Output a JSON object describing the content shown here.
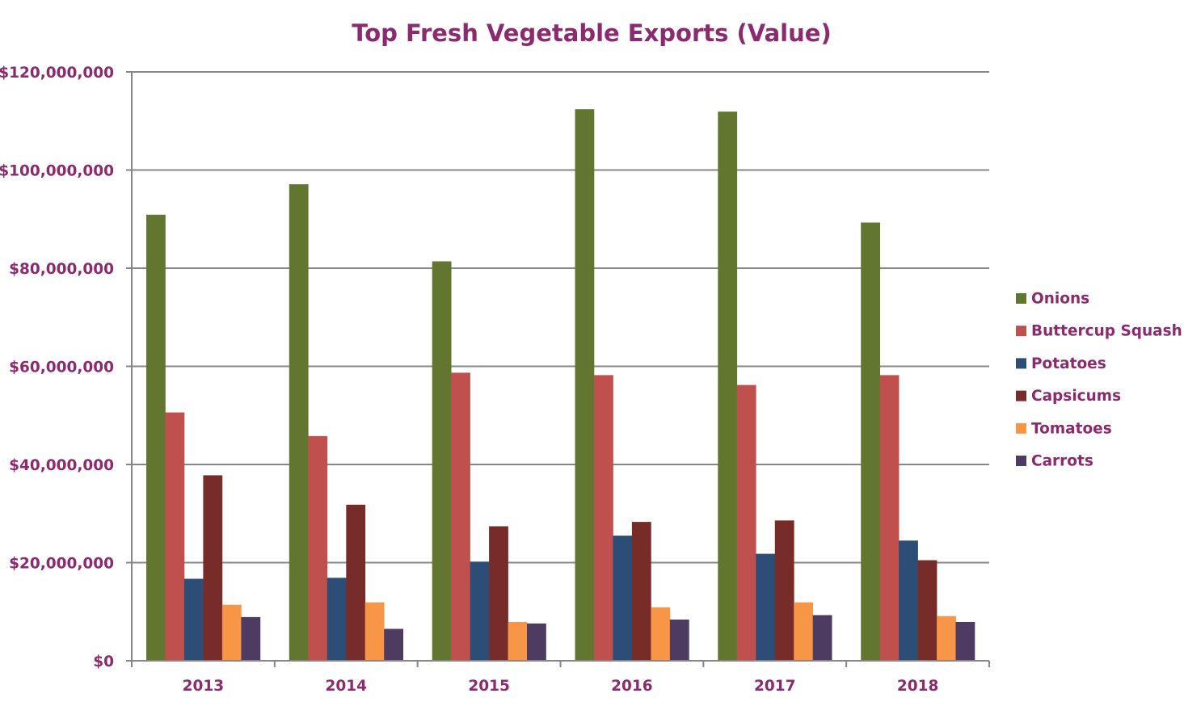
{
  "chart_data": {
    "type": "bar",
    "title": "Top Fresh Vegetable Exports (Value)",
    "xlabel": "",
    "ylabel": "",
    "categories": [
      "2013",
      "2014",
      "2015",
      "2016",
      "2017",
      "2018"
    ],
    "ylim": [
      0,
      120000000
    ],
    "yticks": [
      0,
      20000000,
      40000000,
      60000000,
      80000000,
      100000000,
      120000000
    ],
    "ytick_labels": [
      "$0",
      "$20,000,000",
      "$40,000,000",
      "$60,000,000",
      "$80,000,000",
      "$100,000,000",
      "$120,000,000"
    ],
    "grid": true,
    "legend_position": "right",
    "series": [
      {
        "name": "Onions",
        "color": "#63762F",
        "values": [
          90900000,
          97100000,
          81400000,
          112400000,
          111900000,
          89300000
        ]
      },
      {
        "name": "Buttercup Squash",
        "color": "#C0504D",
        "values": [
          50600000,
          45800000,
          58700000,
          58200000,
          56200000,
          58200000
        ]
      },
      {
        "name": "Potatoes",
        "color": "#2C4D75",
        "values": [
          16700000,
          16900000,
          20200000,
          25500000,
          21800000,
          24500000
        ]
      },
      {
        "name": "Capsicums",
        "color": "#772C2A",
        "values": [
          37800000,
          31800000,
          27400000,
          28300000,
          28600000,
          20500000
        ]
      },
      {
        "name": "Tomatoes",
        "color": "#F79646",
        "values": [
          11400000,
          11900000,
          7900000,
          10900000,
          11900000,
          9100000
        ]
      },
      {
        "name": "Carrots",
        "color": "#4D3B62",
        "values": [
          8900000,
          6500000,
          7600000,
          8400000,
          9300000,
          7900000
        ]
      }
    ]
  }
}
